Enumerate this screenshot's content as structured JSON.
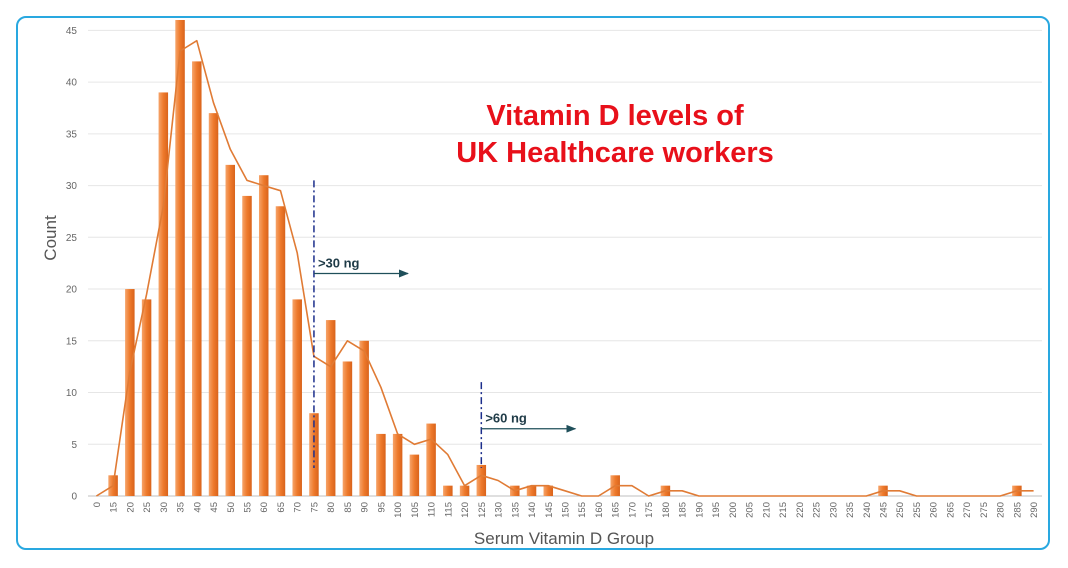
{
  "chart_data": {
    "type": "bar",
    "title_lines": [
      "Vitamin D levels of",
      "UK Healthcare workers"
    ],
    "xlabel": "Serum Vitamin D Group",
    "ylabel": "Count",
    "ylim": [
      0,
      46
    ],
    "yticks": [
      0,
      5,
      10,
      15,
      20,
      25,
      30,
      35,
      40,
      45
    ],
    "grid": true,
    "categories": [
      0,
      15,
      20,
      25,
      30,
      35,
      40,
      45,
      50,
      55,
      60,
      65,
      70,
      75,
      80,
      85,
      90,
      95,
      100,
      105,
      110,
      115,
      120,
      125,
      130,
      135,
      140,
      145,
      150,
      155,
      160,
      165,
      170,
      175,
      180,
      185,
      190,
      195,
      200,
      205,
      210,
      215,
      220,
      225,
      230,
      235,
      240,
      245,
      250,
      255,
      260,
      265,
      270,
      275,
      280,
      285,
      290
    ],
    "series": [
      {
        "type": "bar",
        "color": "#ee7a2c",
        "values": [
          0,
          2,
          20,
          19,
          39,
          46,
          42,
          37,
          32,
          29,
          31,
          28,
          19,
          8,
          17,
          13,
          15,
          6,
          6,
          4,
          7,
          1,
          1,
          3,
          0,
          1,
          1,
          1,
          0,
          0,
          0,
          2,
          0,
          0,
          1,
          0,
          0,
          0,
          0,
          0,
          0,
          0,
          0,
          0,
          0,
          0,
          0,
          1,
          0,
          0,
          0,
          0,
          0,
          0,
          0,
          1,
          0
        ]
      },
      {
        "type": "line",
        "color": "#e07b35",
        "values": [
          0,
          1,
          12,
          19.5,
          28,
          43,
          44,
          38,
          33.5,
          30.5,
          30,
          29.5,
          23.5,
          13.5,
          12.5,
          15,
          14,
          10.5,
          6,
          5,
          5.5,
          4,
          1,
          2,
          1.5,
          0.5,
          1,
          1,
          0.5,
          0,
          0,
          1,
          1,
          0,
          0.5,
          0.5,
          0,
          0,
          0,
          0,
          0,
          0,
          0,
          0,
          0,
          0,
          0,
          0.5,
          0.5,
          0,
          0,
          0,
          0,
          0,
          0,
          0.5,
          0.5
        ]
      }
    ],
    "annotations": [
      {
        "text": ">30 ng",
        "x": 75,
        "line_top": 30.5,
        "arrow_y": 21.5,
        "color": "#1c2e8c",
        "arrow_color": "#1f4f5a"
      },
      {
        "text": ">60 ng",
        "x": 125,
        "line_top": 11,
        "arrow_y": 6.5,
        "color": "#1c2e8c",
        "arrow_color": "#1f4f5a"
      }
    ]
  }
}
